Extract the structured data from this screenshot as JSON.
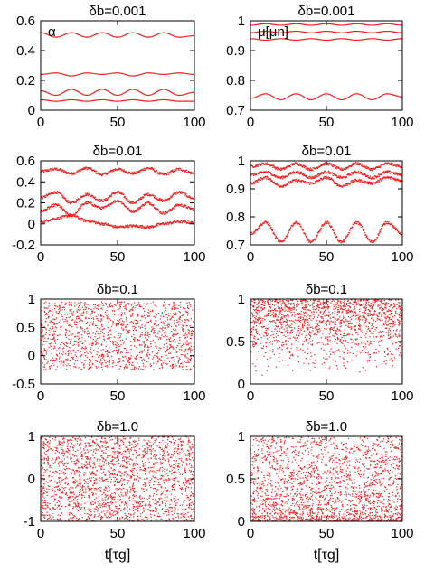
{
  "chart_data": [
    {
      "type": "line",
      "title": "δb=0.001",
      "annotation": "α",
      "xlim": [
        0,
        100
      ],
      "ylim": [
        0,
        0.6
      ],
      "xticks": [
        "0",
        "50",
        "100"
      ],
      "yticks": [
        "0",
        "0.2",
        "0.4",
        "0.6"
      ],
      "x": [
        0,
        10,
        20,
        30,
        40,
        50,
        60,
        70,
        80,
        90,
        100
      ],
      "series": [
        {
          "values": [
            0.52,
            0.49,
            0.52,
            0.49,
            0.52,
            0.49,
            0.52,
            0.49,
            0.52,
            0.49,
            0.5
          ]
        },
        {
          "values": [
            0.24,
            0.25,
            0.23,
            0.25,
            0.24,
            0.25,
            0.23,
            0.25,
            0.24,
            0.25,
            0.24
          ]
        },
        {
          "values": [
            0.13,
            0.1,
            0.14,
            0.1,
            0.14,
            0.1,
            0.14,
            0.1,
            0.14,
            0.1,
            0.12
          ]
        },
        {
          "values": [
            0.07,
            0.06,
            0.07,
            0.06,
            0.07,
            0.06,
            0.07,
            0.06,
            0.07,
            0.06,
            0.06
          ]
        }
      ]
    },
    {
      "type": "line",
      "title": "δb=0.001",
      "annotation": "μ[μn]",
      "xlim": [
        0,
        100
      ],
      "ylim": [
        0.7,
        1
      ],
      "xticks": [
        "0",
        "50",
        "100"
      ],
      "yticks": [
        "0.7",
        "0.8",
        "0.9",
        "1"
      ],
      "x": [
        0,
        10,
        20,
        30,
        40,
        50,
        60,
        70,
        80,
        90,
        100
      ],
      "series": [
        {
          "values": [
            0.985,
            0.99,
            0.985,
            0.99,
            0.985,
            0.99,
            0.985,
            0.99,
            0.985,
            0.99,
            0.985
          ]
        },
        {
          "values": [
            0.96,
            0.965,
            0.96,
            0.965,
            0.96,
            0.965,
            0.96,
            0.965,
            0.96,
            0.965,
            0.96
          ]
        },
        {
          "values": [
            0.94,
            0.935,
            0.94,
            0.935,
            0.94,
            0.935,
            0.94,
            0.935,
            0.94,
            0.935,
            0.94
          ]
        },
        {
          "values": [
            0.74,
            0.755,
            0.735,
            0.755,
            0.735,
            0.755,
            0.735,
            0.755,
            0.735,
            0.755,
            0.745
          ]
        }
      ]
    },
    {
      "type": "scatter",
      "title": "δb=0.01",
      "xlim": [
        0,
        100
      ],
      "ylim": [
        -0.2,
        0.6
      ],
      "xticks": [
        "0",
        "50",
        "100"
      ],
      "yticks": [
        "-0.2",
        "0",
        "0.2",
        "0.4",
        "0.6"
      ],
      "x": [
        0,
        10,
        20,
        30,
        40,
        50,
        60,
        70,
        80,
        90,
        100
      ],
      "series": [
        {
          "values": [
            0.5,
            0.52,
            0.48,
            0.53,
            0.47,
            0.52,
            0.48,
            0.53,
            0.47,
            0.52,
            0.48
          ]
        },
        {
          "values": [
            0.25,
            0.3,
            0.2,
            0.28,
            0.22,
            0.3,
            0.2,
            0.28,
            0.22,
            0.3,
            0.24
          ]
        },
        {
          "values": [
            0.12,
            0.18,
            0.08,
            0.2,
            0.15,
            0.22,
            0.12,
            0.2,
            0.1,
            0.18,
            0.14
          ]
        },
        {
          "values": [
            0.02,
            0.05,
            0.08,
            0.03,
            0.0,
            -0.03,
            -0.02,
            -0.03,
            0.0,
            0.02,
            0.01
          ]
        }
      ]
    },
    {
      "type": "scatter",
      "title": "δb=0.01",
      "xlim": [
        0,
        100
      ],
      "ylim": [
        0.7,
        1
      ],
      "xticks": [
        "0",
        "50",
        "100"
      ],
      "yticks": [
        "0.7",
        "0.8",
        "0.9",
        "1"
      ],
      "x": [
        0,
        10,
        20,
        30,
        40,
        50,
        60,
        70,
        80,
        90,
        100
      ],
      "series": [
        {
          "values": [
            0.98,
            0.99,
            0.97,
            0.99,
            0.97,
            0.99,
            0.97,
            0.99,
            0.97,
            0.99,
            0.98
          ]
        },
        {
          "values": [
            0.95,
            0.96,
            0.94,
            0.96,
            0.94,
            0.96,
            0.94,
            0.96,
            0.94,
            0.96,
            0.95
          ]
        },
        {
          "values": [
            0.92,
            0.94,
            0.91,
            0.93,
            0.92,
            0.94,
            0.91,
            0.93,
            0.92,
            0.94,
            0.93
          ]
        },
        {
          "values": [
            0.74,
            0.78,
            0.71,
            0.78,
            0.71,
            0.78,
            0.71,
            0.78,
            0.71,
            0.78,
            0.74
          ]
        }
      ]
    },
    {
      "type": "scatter",
      "title": "δb=0.1",
      "xlim": [
        0,
        100
      ],
      "ylim": [
        -0.5,
        1
      ],
      "xticks": [
        "0",
        "50",
        "100"
      ],
      "yticks": [
        "-0.5",
        "0",
        "0.5",
        "1"
      ],
      "value_range": [
        -0.25,
        0.95
      ],
      "point_count": 1400
    },
    {
      "type": "scatter",
      "title": "δb=0.1",
      "xlim": [
        0,
        100
      ],
      "ylim": [
        0,
        1
      ],
      "xticks": [
        "0",
        "50",
        "100"
      ],
      "yticks": [
        "0",
        "0.5",
        "1"
      ],
      "value_range": [
        0.05,
        1.0
      ],
      "point_count": 1600
    },
    {
      "type": "scatter",
      "title": "δb=1.0",
      "xlim": [
        0,
        100
      ],
      "ylim": [
        -1,
        1
      ],
      "xticks": [
        "0",
        "50",
        "100"
      ],
      "yticks": [
        "-1",
        "0",
        "1"
      ],
      "xlabel": "t[τg]",
      "value_range": [
        -1,
        1
      ],
      "point_count": 2000
    },
    {
      "type": "scatter",
      "title": "δb=1.0",
      "xlim": [
        0,
        100
      ],
      "ylim": [
        0,
        1
      ],
      "xticks": [
        "0",
        "50",
        "100"
      ],
      "yticks": [
        "0",
        "0.5",
        "1"
      ],
      "xlabel": "t[τg]",
      "value_range": [
        0,
        1
      ],
      "point_count": 2000
    }
  ],
  "colors": {
    "series": "#ee2222",
    "axis": "#000000"
  }
}
